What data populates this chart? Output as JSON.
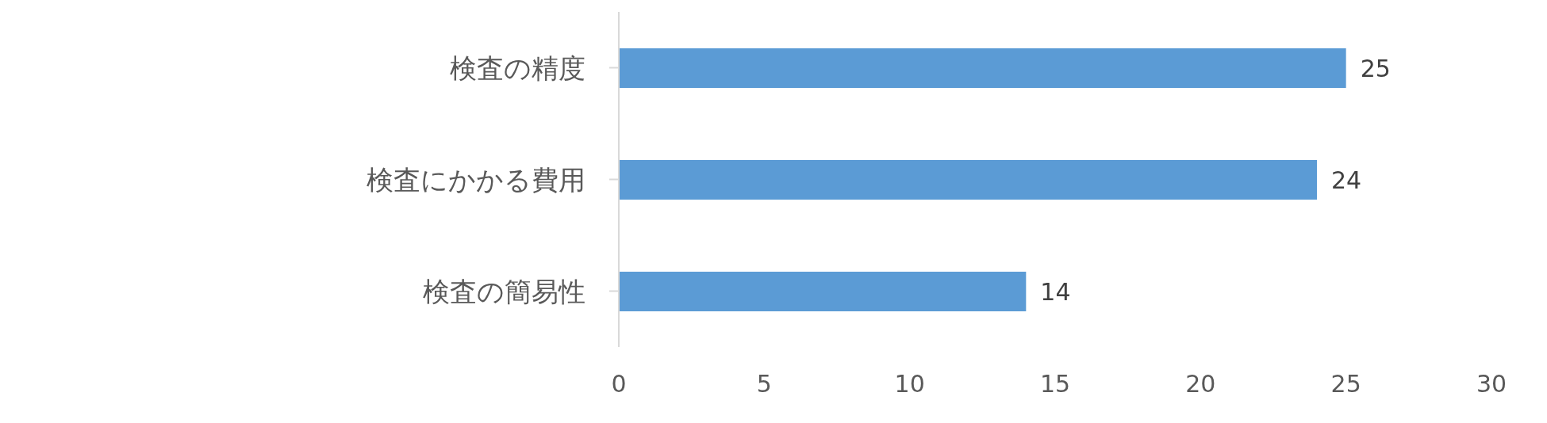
{
  "chart_data": {
    "type": "bar",
    "orientation": "horizontal",
    "categories": [
      "検査の精度",
      "検査にかかる費用",
      "検査の簡易性"
    ],
    "values": [
      25,
      24,
      14
    ],
    "color": "#5b9bd5",
    "xlim": [
      0,
      30
    ],
    "xticks": [
      0,
      5,
      10,
      15,
      20,
      25,
      30
    ],
    "data_labels": true,
    "grid": false
  }
}
